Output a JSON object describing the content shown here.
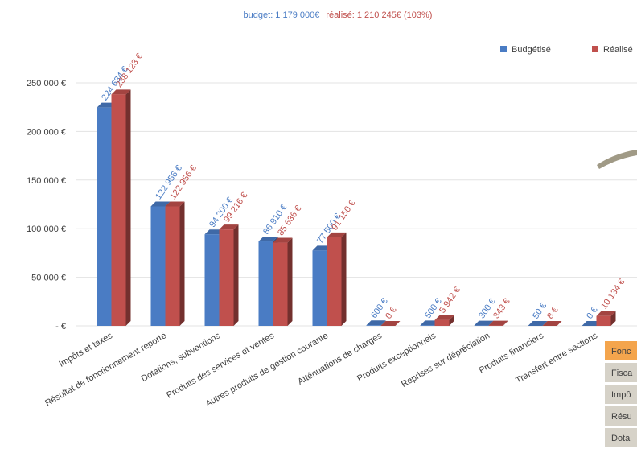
{
  "chart_data": {
    "type": "bar3d",
    "title": [
      "budget: 1 179 000€",
      "réalisé: 1 210 245€ (103%)"
    ],
    "categories": [
      "Impôts et taxes",
      "Résultat de fonctionnement reporté",
      "Dotations, subventions",
      "Produits des services  et ventes",
      "Autres produits de gestion courante",
      "Atténuations de charges",
      "Produits exceptionnels",
      "Reprises sur dépréciation",
      "Produits financiers",
      "Transfert  entre sections"
    ],
    "series": [
      {
        "name": "Budgétisé",
        "color": "#4a7cc4",
        "values": [
          224634,
          122956,
          94200,
          86910,
          77500,
          600,
          500,
          300,
          50,
          0
        ],
        "value_labels": [
          "224 634 €",
          "122 956 €",
          "94 200 €",
          "86 910 €",
          "77 500 €",
          "600 €",
          "500 €",
          "300 €",
          "50 €",
          "0 €"
        ]
      },
      {
        "name": "Réalisé",
        "color": "#c0504d",
        "values": [
          238123,
          122956,
          99216,
          85636,
          91150,
          0,
          5942,
          343,
          8,
          10134
        ],
        "value_labels": [
          "238 123 €",
          "122 956 €",
          "99 216 €",
          "85 636 €",
          "91 150 €",
          "0 €",
          "5 942 €",
          "343 €",
          "8 €",
          "10 134 €"
        ]
      }
    ],
    "ylim": [
      0,
      250000
    ],
    "yticks": [
      {
        "value": 0,
        "label": "- €"
      },
      {
        "value": 50000,
        "label": "50 000 €"
      },
      {
        "value": 100000,
        "label": "100 000 €"
      },
      {
        "value": 150000,
        "label": "150 000 €"
      },
      {
        "value": 200000,
        "label": "200 000 €"
      },
      {
        "value": 250000,
        "label": "250 000 €"
      }
    ],
    "grid": true,
    "legend": "top-right"
  },
  "side_table": [
    "Fonc",
    "Fisca",
    "Impô",
    "Résu",
    "Dota"
  ]
}
